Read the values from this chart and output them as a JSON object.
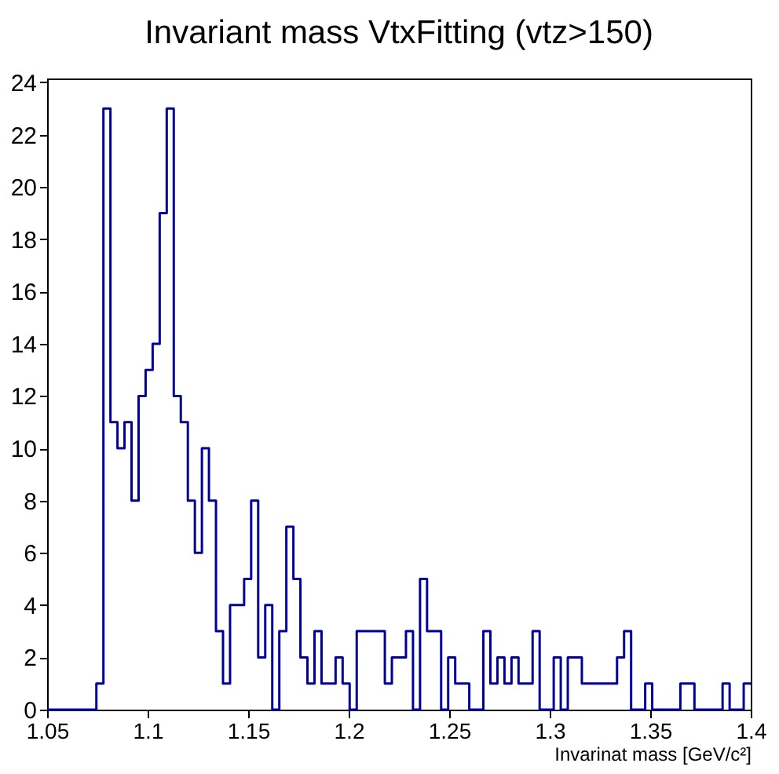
{
  "chart_data": {
    "type": "histogram",
    "title": "Invariant mass VtxFitting (vtz>150)",
    "xlabel": "Invarinat mass [GeV/c²]",
    "bins": [
      1.05,
      1.0535,
      1.057,
      1.0605,
      1.064,
      1.0675,
      1.071,
      1.0745,
      1.078,
      1.0815,
      1.085,
      1.0885,
      1.092,
      1.0955,
      1.099,
      1.1025,
      1.106,
      1.1095,
      1.113,
      1.1165,
      1.12,
      1.1235,
      1.127,
      1.1305,
      1.134,
      1.1375,
      1.141,
      1.1445,
      1.148,
      1.1515,
      1.155,
      1.1585,
      1.162,
      1.1655,
      1.169,
      1.1725,
      1.176,
      1.1795,
      1.183,
      1.1865,
      1.19,
      1.1935,
      1.197,
      1.2005,
      1.204,
      1.2075,
      1.211,
      1.2145,
      1.218,
      1.2215,
      1.225,
      1.2285,
      1.232,
      1.2355,
      1.239,
      1.2425,
      1.246,
      1.2495,
      1.253,
      1.2565,
      1.26,
      1.2635,
      1.267,
      1.2705,
      1.274,
      1.2775,
      1.281,
      1.2845,
      1.288,
      1.2915,
      1.295,
      1.2985,
      1.302,
      1.3055,
      1.309,
      1.3125,
      1.316,
      1.3195,
      1.323,
      1.3265,
      1.33,
      1.3335,
      1.337,
      1.3405,
      1.344,
      1.3475,
      1.351,
      1.3545,
      1.358,
      1.3615,
      1.365,
      1.3685,
      1.372,
      1.3755,
      1.379,
      1.3825,
      1.386,
      1.3895,
      1.393,
      1.3965,
      1.4
    ],
    "values": [
      0,
      0,
      0,
      0,
      0,
      0,
      0,
      1,
      23,
      11,
      10,
      11,
      8,
      12,
      13,
      14,
      19,
      23,
      12,
      11,
      8,
      6,
      10,
      8,
      3,
      1,
      4,
      4,
      5,
      8,
      2,
      4,
      0,
      3,
      7,
      5,
      2,
      1,
      3,
      1,
      1,
      2,
      1,
      0,
      3,
      3,
      3,
      3,
      1,
      2,
      2,
      3,
      0,
      5,
      3,
      3,
      0,
      2,
      1,
      1,
      0,
      0,
      3,
      1,
      2,
      1,
      2,
      1,
      1,
      3,
      0,
      0,
      2,
      0,
      2,
      2,
      1,
      1,
      1,
      1,
      1,
      2,
      3,
      0,
      0,
      1,
      0,
      0,
      0,
      0,
      1,
      1,
      0,
      0,
      0,
      0,
      1,
      0,
      0,
      1
    ],
    "color": "#000099",
    "xlim": [
      1.05,
      1.4
    ],
    "xticks": [
      1.05,
      1.1,
      1.15,
      1.2,
      1.25,
      1.3,
      1.35,
      1.4
    ],
    "ylim": [
      0,
      24.15
    ],
    "yticks": [
      0,
      2,
      4,
      6,
      8,
      10,
      12,
      14,
      16,
      18,
      20,
      22,
      24
    ],
    "grid": false
  }
}
